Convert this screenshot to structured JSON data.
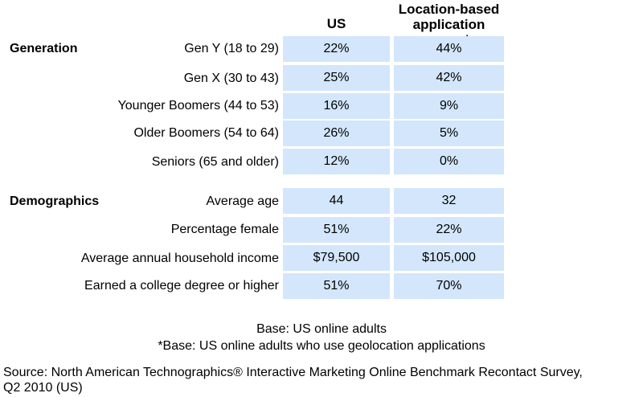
{
  "chart_data": {
    "type": "table",
    "columns": [
      "US",
      "Location-based application users*"
    ],
    "sections": [
      {
        "name": "Generation",
        "rows": [
          {
            "label": "Gen Y (18 to 29)",
            "values": [
              "22%",
              "44%"
            ]
          },
          {
            "label": "Gen X (30 to 43)",
            "values": [
              "25%",
              "42%"
            ]
          },
          {
            "label": "Younger Boomers (44 to 53)",
            "values": [
              "16%",
              "9%"
            ]
          },
          {
            "label": "Older Boomers (54 to 64)",
            "values": [
              "26%",
              "5%"
            ]
          },
          {
            "label": "Seniors (65 and older)",
            "values": [
              "12%",
              "0%"
            ]
          }
        ]
      },
      {
        "name": "Demographics",
        "rows": [
          {
            "label": "Average age",
            "values": [
              "44",
              "32"
            ]
          },
          {
            "label": "Percentage female",
            "values": [
              "51%",
              "22%"
            ]
          },
          {
            "label": "Average annual household income",
            "values": [
              "$79,500",
              "$105,000"
            ]
          },
          {
            "label": "Earned a college degree or higher",
            "values": [
              "51%",
              "70%"
            ]
          }
        ]
      }
    ],
    "cell_color": "#d3e6fb"
  },
  "header": {
    "us": "US",
    "loc_line1": "Location-based",
    "loc_line2": "application users*"
  },
  "notes": {
    "base": "Base: US online adults",
    "base2": "*Base: US online adults who use geolocation applications",
    "source_line1": "Source: North American Technographics® Interactive Marketing Online Benchmark Recontact Survey,",
    "source_line2": "Q2 2010 (US)"
  }
}
